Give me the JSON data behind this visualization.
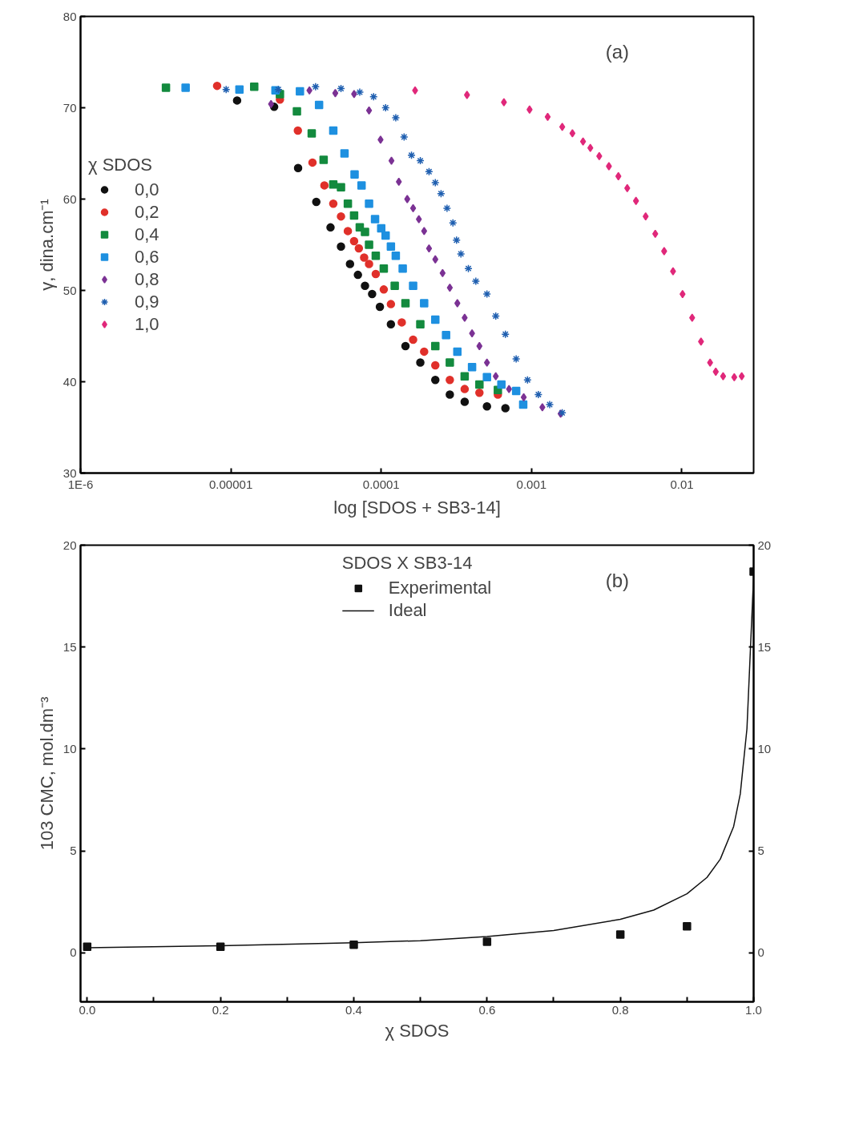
{
  "chart_data": [
    {
      "type": "scatter",
      "xlabel": "log [SDOS + SB3-14]",
      "ylabel": "γ, dina.cm⁻¹",
      "legend_title": "χ SDOS",
      "legend": "left",
      "log": "x",
      "grid": false,
      "annotations": [
        "(a)"
      ],
      "xlim": [
        1e-06,
        0.03
      ],
      "ylim": [
        30,
        80
      ],
      "xticks": [
        {
          "value": 1e-06,
          "label": "1E-6"
        },
        {
          "value": 1e-05,
          "label": "0.00001"
        },
        {
          "value": 0.0001,
          "label": "0.0001"
        },
        {
          "value": 0.001,
          "label": "0.001"
        },
        {
          "value": 0.01,
          "label": "0.01"
        }
      ],
      "yticks": [
        30,
        40,
        50,
        60,
        70,
        80
      ],
      "series": [
        {
          "name": "0,0",
          "color": "#111111",
          "marker": "circle",
          "x": [
            1.1e-05,
            1.94e-05,
            2.8e-05,
            3.7e-05,
            4.6e-05,
            5.4e-05,
            6.2e-05,
            7e-05,
            7.8e-05,
            8.7e-05,
            9.8e-05,
            0.000116,
            0.000145,
            0.000182,
            0.000229,
            0.000286,
            0.000359,
            0.000505,
            0.00067
          ],
          "values": [
            70.8,
            70.1,
            63.4,
            59.7,
            56.9,
            54.8,
            52.9,
            51.7,
            50.5,
            49.6,
            48.2,
            46.3,
            43.9,
            42.1,
            40.2,
            38.6,
            37.8,
            37.3,
            37.1
          ]
        },
        {
          "name": "0,2",
          "color": "#e0302a",
          "marker": "circle",
          "x": [
            8.1e-06,
            2.12e-05,
            2.79e-05,
            3.49e-05,
            4.19e-05,
            4.8e-05,
            5.4e-05,
            6e-05,
            6.6e-05,
            7.1e-05,
            7.7e-05,
            8.3e-05,
            9.2e-05,
            0.000104,
            0.000116,
            0.000137,
            0.000163,
            0.000193,
            0.000229,
            0.000286,
            0.000359,
            0.00045,
            0.000597
          ],
          "values": [
            72.4,
            70.9,
            67.5,
            64.0,
            61.5,
            59.5,
            58.1,
            56.5,
            55.4,
            54.6,
            53.6,
            52.9,
            51.8,
            50.1,
            48.5,
            46.5,
            44.6,
            43.3,
            41.8,
            40.2,
            39.2,
            38.8,
            38.6
          ]
        },
        {
          "name": "0,4",
          "color": "#138a3e",
          "marker": "square",
          "x": [
            3.7e-06,
            1.43e-05,
            2.12e-05,
            2.75e-05,
            3.45e-05,
            4.14e-05,
            4.8e-05,
            5.4e-05,
            6e-05,
            6.6e-05,
            7.2e-05,
            7.8e-05,
            8.3e-05,
            9.2e-05,
            0.000104,
            0.000123,
            0.000145,
            0.000182,
            0.000229,
            0.000286,
            0.000359,
            0.00045,
            0.000597
          ],
          "values": [
            72.2,
            72.3,
            71.5,
            69.6,
            67.2,
            64.3,
            61.6,
            61.3,
            59.5,
            58.2,
            56.9,
            56.4,
            55.0,
            53.8,
            52.4,
            50.5,
            48.6,
            46.3,
            43.9,
            42.1,
            40.6,
            39.7,
            39.1
          ]
        },
        {
          "name": "0,6",
          "color": "#1e90e0",
          "marker": "square",
          "x": [
            5e-06,
            1.14e-05,
            1.98e-05,
            2.88e-05,
            3.86e-05,
            4.8e-05,
            5.7e-05,
            6.65e-05,
            7.4e-05,
            8.3e-05,
            9.1e-05,
            0.0001,
            0.000107,
            0.000116,
            0.000125,
            0.000139,
            0.000163,
            0.000193,
            0.000229,
            0.00027,
            0.000321,
            0.000402,
            0.000505,
            0.00063,
            0.00079,
            0.00088
          ],
          "values": [
            72.2,
            72.0,
            71.9,
            71.8,
            70.3,
            67.5,
            65.0,
            62.7,
            61.5,
            59.5,
            57.8,
            56.8,
            56.0,
            54.8,
            53.8,
            52.4,
            50.5,
            48.6,
            46.8,
            45.1,
            43.3,
            41.6,
            40.5,
            39.7,
            39.0,
            37.5
          ]
        },
        {
          "name": "0,8",
          "color": "#7b3294",
          "marker": "diamond",
          "x": [
            1.85e-05,
            3.33e-05,
            4.95e-05,
            6.6e-05,
            8.3e-05,
            9.9e-05,
            0.000117,
            0.000131,
            0.000149,
            0.000163,
            0.000178,
            0.000193,
            0.000208,
            0.000229,
            0.000256,
            0.000286,
            0.000321,
            0.000359,
            0.000402,
            0.00045,
            0.000505,
            0.000578,
            0.000708,
            0.000887,
            0.00118,
            0.00156
          ],
          "values": [
            70.4,
            71.9,
            71.6,
            71.5,
            69.7,
            66.5,
            64.2,
            61.9,
            60.0,
            59.0,
            57.8,
            56.5,
            54.6,
            53.4,
            51.9,
            50.3,
            48.6,
            47.0,
            45.3,
            43.9,
            42.1,
            40.6,
            39.2,
            38.3,
            37.2,
            36.5
          ]
        },
        {
          "name": "0,9",
          "color": "#1f5fb0",
          "marker": "cross",
          "x": [
            9.3e-06,
            2.07e-05,
            3.66e-05,
            5.4e-05,
            7.2e-05,
            8.9e-05,
            0.000107,
            0.000125,
            0.000142,
            0.000159,
            0.000182,
            0.000208,
            0.000229,
            0.00025,
            0.000274,
            0.0003,
            0.000317,
            0.000339,
            0.00038,
            0.000426,
            0.000505,
            0.000578,
            0.00067,
            0.00079,
            0.00094,
            0.00111,
            0.00132,
            0.0016
          ],
          "values": [
            72.0,
            72.0,
            72.3,
            72.1,
            71.7,
            71.2,
            70.0,
            68.9,
            66.8,
            64.8,
            64.2,
            63.0,
            61.8,
            60.6,
            59.0,
            57.4,
            55.5,
            54.0,
            52.4,
            51.0,
            49.6,
            47.2,
            45.2,
            42.5,
            40.2,
            38.6,
            37.5,
            36.6
          ]
        },
        {
          "name": "1,0",
          "color": "#e0287a",
          "marker": "diamond",
          "x": [
            0.000168,
            0.000372,
            0.000655,
            0.00097,
            0.00128,
            0.0016,
            0.00187,
            0.0022,
            0.00246,
            0.00282,
            0.00327,
            0.00378,
            0.00433,
            0.00495,
            0.00574,
            0.00665,
            0.00762,
            0.00873,
            0.0101,
            0.0117,
            0.0134,
            0.0154,
            0.0168,
            0.0188,
            0.0223,
            0.025
          ],
          "values": [
            71.9,
            71.4,
            70.6,
            69.8,
            69.0,
            67.9,
            67.2,
            66.3,
            65.6,
            64.7,
            63.6,
            62.5,
            61.2,
            59.8,
            58.1,
            56.2,
            54.3,
            52.1,
            49.6,
            47.0,
            44.4,
            42.1,
            41.1,
            40.6,
            40.5,
            40.6
          ]
        }
      ]
    },
    {
      "type": "scatter",
      "xlabel": "χ SDOS",
      "ylabel": "103 CMC, mol.dm⁻³",
      "legend_title": "SDOS X SB3-14",
      "legend": "top",
      "grid": false,
      "annotations": [
        "(b)"
      ],
      "xlim": [
        -0.01,
        1.0
      ],
      "ylim": [
        -2.4,
        20
      ],
      "y2lim": [
        -2.4,
        20
      ],
      "xticks": [
        {
          "value": 0.0,
          "label": "0.0"
        },
        {
          "value": 0.1,
          "label": null
        },
        {
          "value": 0.2,
          "label": "0.2"
        },
        {
          "value": 0.3,
          "label": null
        },
        {
          "value": 0.4,
          "label": "0.4"
        },
        {
          "value": 0.5,
          "label": null
        },
        {
          "value": 0.6,
          "label": "0.6"
        },
        {
          "value": 0.7,
          "label": null
        },
        {
          "value": 0.8,
          "label": "0.8"
        },
        {
          "value": 0.9,
          "label": null
        },
        {
          "value": 1.0,
          "label": "1.0"
        }
      ],
      "yticks": [
        0,
        5,
        10,
        15,
        20
      ],
      "y2ticks": [
        0,
        5,
        10,
        15,
        20
      ],
      "series": [
        {
          "name": "Experimental",
          "color": "#111111",
          "marker": "square",
          "x": [
            0.0,
            0.2,
            0.4,
            0.6,
            0.8,
            0.9,
            1.0
          ],
          "values": [
            0.3,
            0.3,
            0.4,
            0.55,
            0.9,
            1.3,
            18.7
          ]
        },
        {
          "name": "Ideal",
          "type": "line",
          "color": "#111111",
          "marker": "none",
          "line_style": "solid",
          "x": [
            0.0,
            0.2,
            0.4,
            0.5,
            0.6,
            0.7,
            0.8,
            0.85,
            0.9,
            0.93,
            0.95,
            0.97,
            0.98,
            0.99,
            1.0
          ],
          "values": [
            0.25,
            0.35,
            0.5,
            0.6,
            0.8,
            1.1,
            1.65,
            2.1,
            2.9,
            3.7,
            4.6,
            6.2,
            7.8,
            11,
            18.5
          ]
        }
      ]
    }
  ]
}
